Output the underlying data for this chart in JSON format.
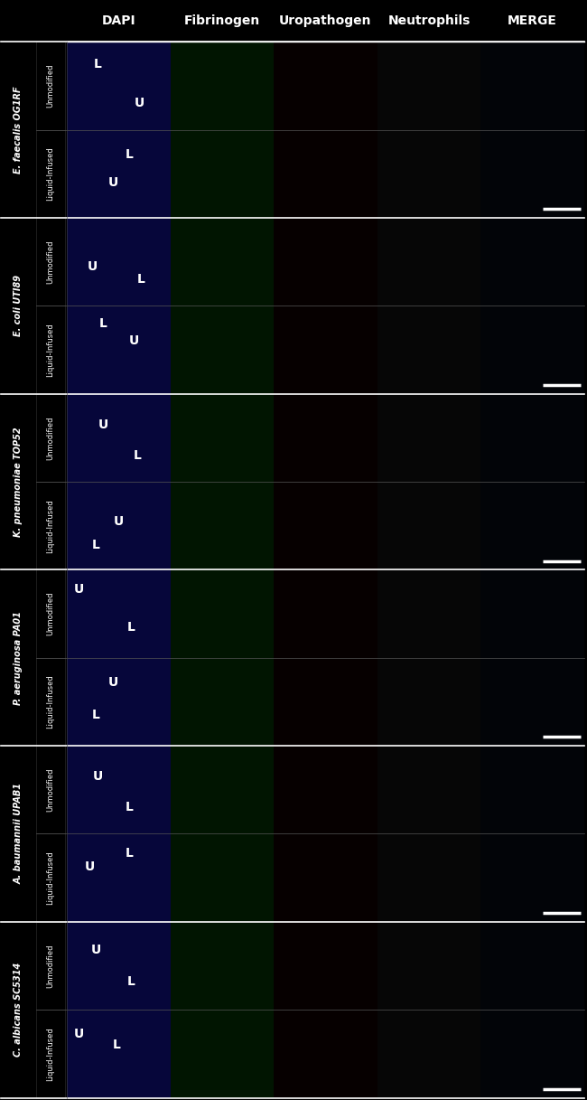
{
  "col_headers": [
    "DAPI",
    "Fibrinogen",
    "Uropathogen",
    "Neutrophils",
    "MERGE"
  ],
  "row_groups": [
    {
      "organism_italic": "E. faecalis",
      "organism_bold": " OG1RF",
      "rows": [
        "Unmodified",
        "Liquid-Infused"
      ]
    },
    {
      "organism_italic": "E. coli",
      "organism_bold": " UTI89",
      "rows": [
        "Unmodified",
        "Liquid-Infused"
      ]
    },
    {
      "organism_italic": "K. pneumoniae",
      "organism_bold": " TOP52",
      "rows": [
        "Unmodified",
        "Liquid-Infused"
      ]
    },
    {
      "organism_italic": "P. aeruginosa",
      "organism_bold": " PA01",
      "rows": [
        "Unmodified",
        "Liquid-Infused"
      ]
    },
    {
      "organism_italic": "A. baumannii",
      "organism_bold": " UPAB1",
      "rows": [
        "Unmodified",
        "Liquid-Infused"
      ]
    },
    {
      "organism_italic": "C. albicans",
      "organism_bold": " SC5314",
      "rows": [
        "Unmodified",
        "Liquid-Infused"
      ]
    }
  ],
  "n_cols": 5,
  "n_rows": 12,
  "n_groups": 6,
  "background_color": "#000000",
  "header_color": "#ffffff",
  "row_label_color": "#ffffff",
  "organism_label_color": "#ffffff",
  "col_header_fontsize": 10,
  "row_label_fontsize": 6,
  "organism_label_fontsize": 7,
  "scalebar_color": "#ffffff",
  "fig_width": 6.5,
  "fig_height": 12.17,
  "cell_bg_colors": {
    "0": "#08083a",
    "1": "#021402",
    "2": "#080000",
    "3": "#080808",
    "4": "#03060f"
  },
  "scale_bar_rows": [
    1,
    3,
    5,
    7,
    9,
    11
  ],
  "group_separator_color": "#ffffff",
  "inner_separator_color": "#555555",
  "header_line_color": "#ffffff"
}
